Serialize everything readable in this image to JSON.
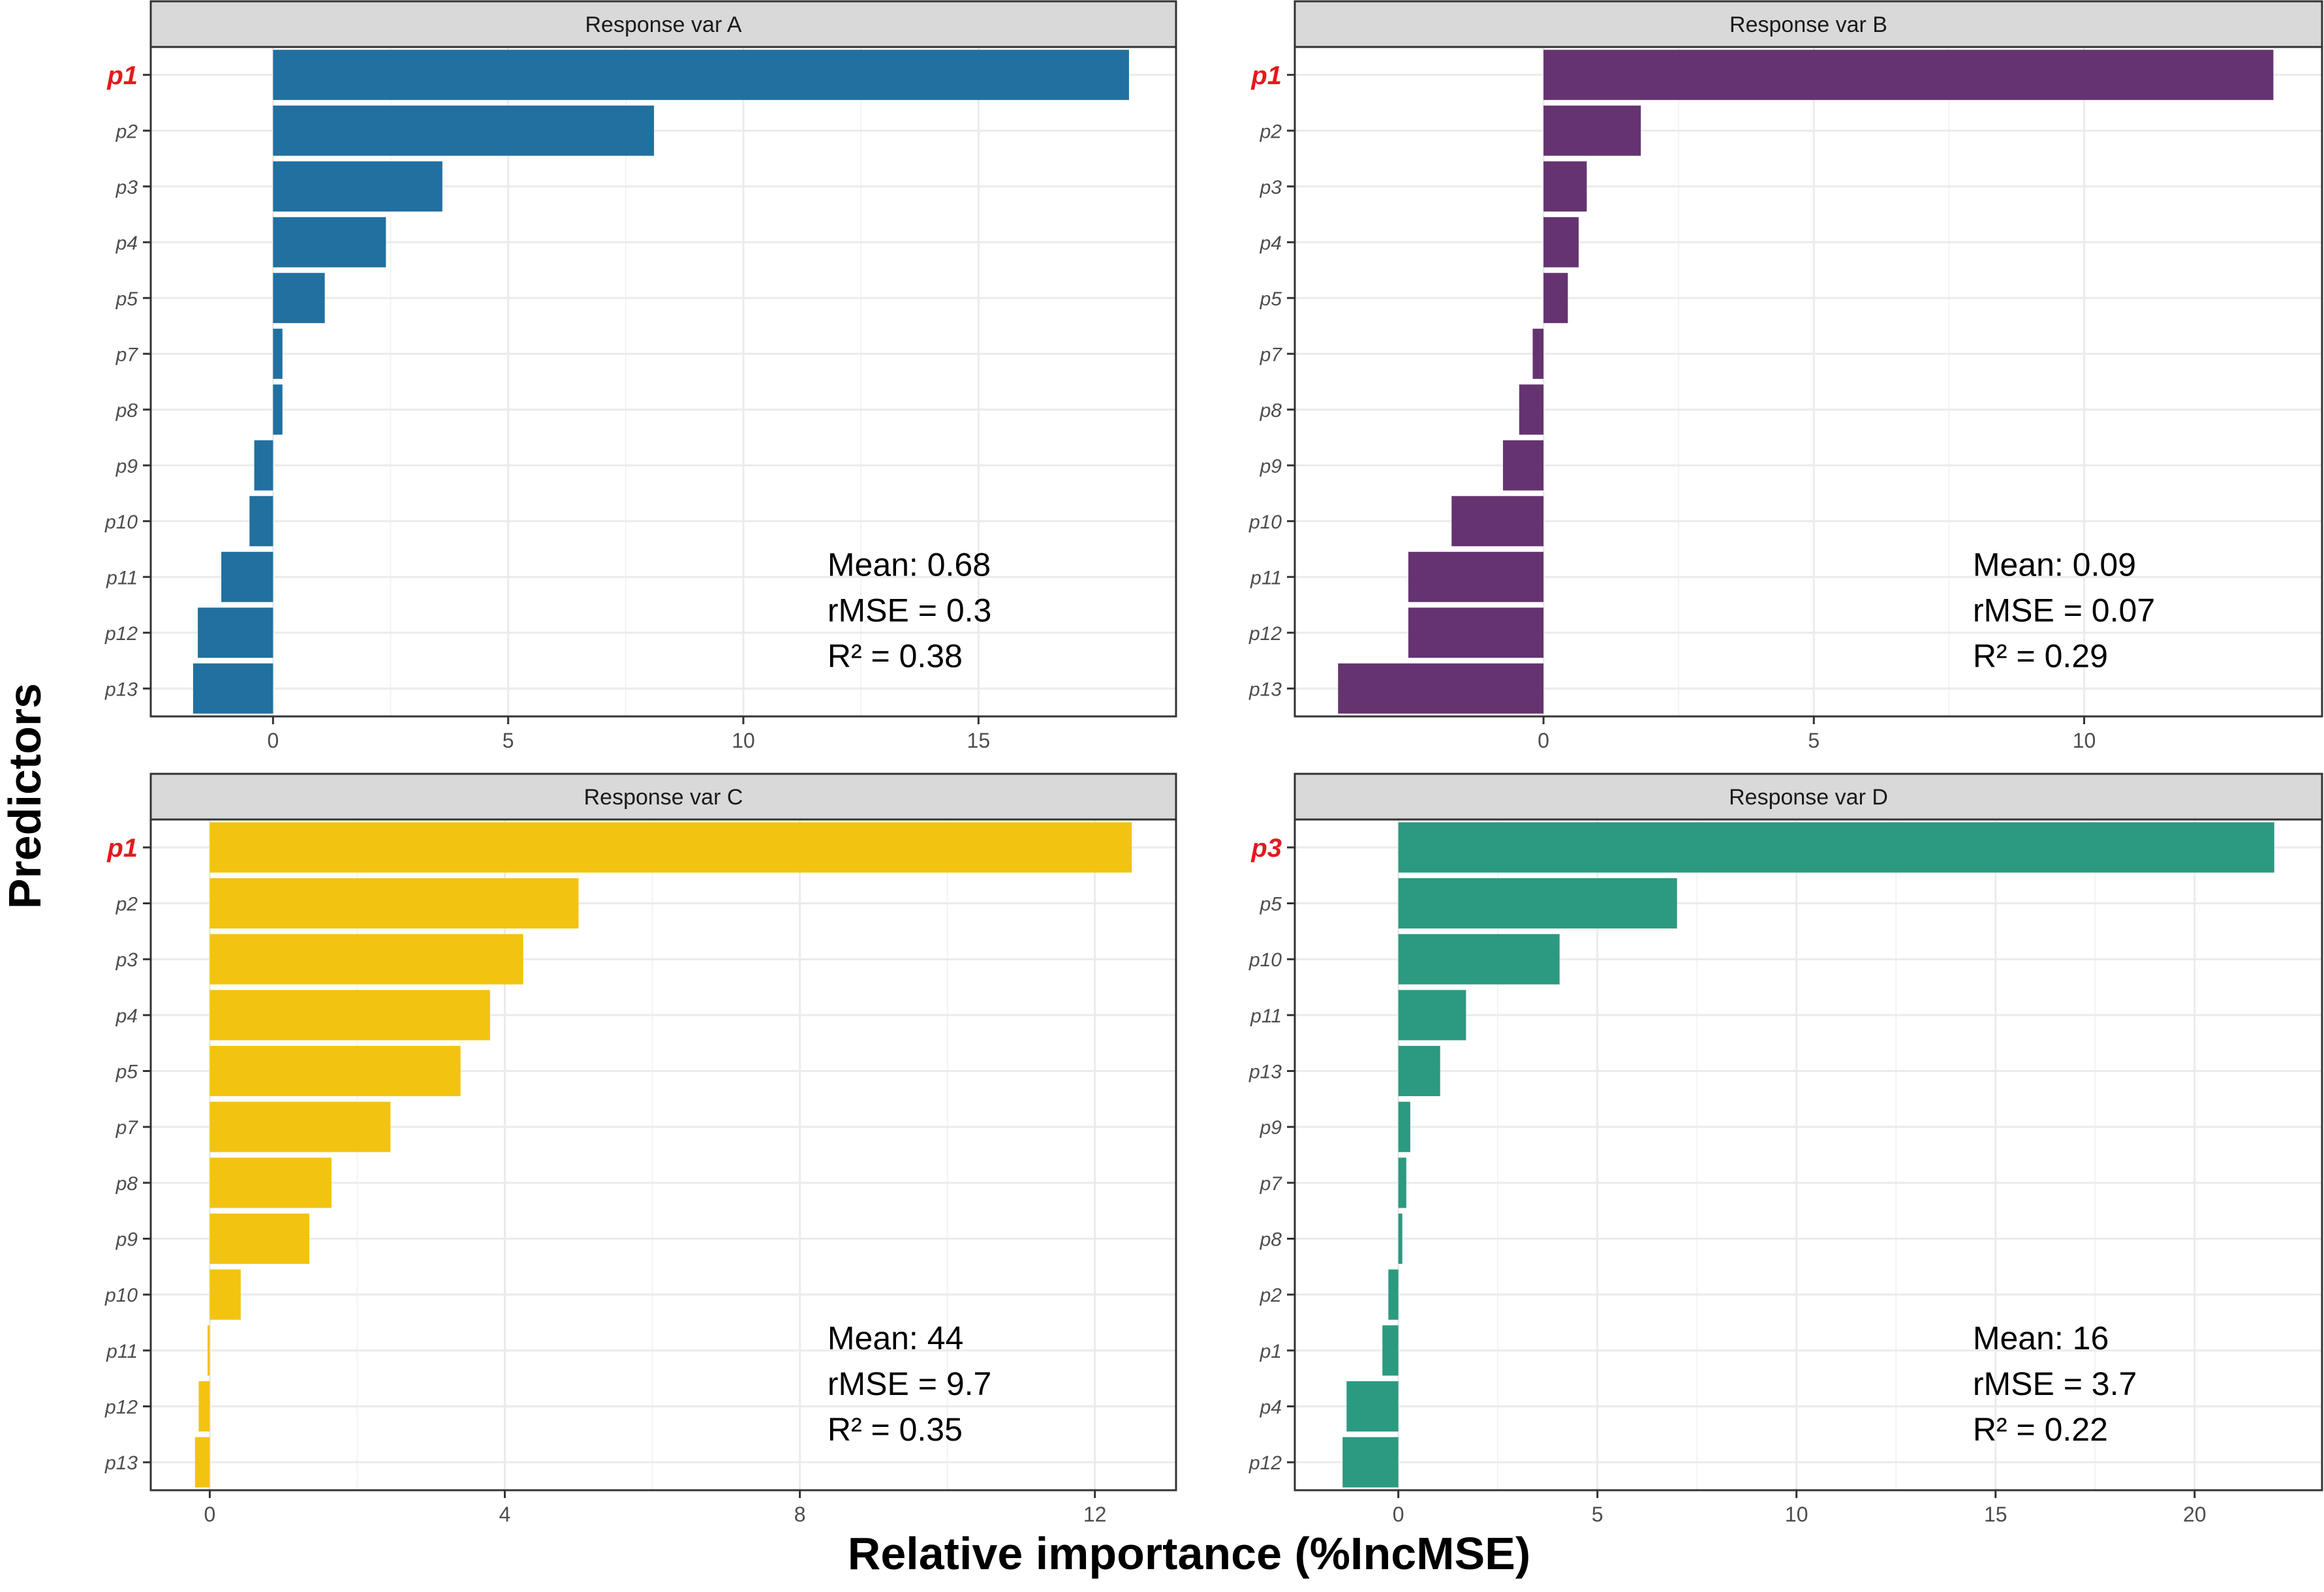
{
  "chart_data": {
    "type": "bar",
    "orientation": "horizontal",
    "xlabel": "Relative importance (%IncMSE)",
    "ylabel": "Predictors",
    "grid": true,
    "panels": [
      {
        "title": "Response var A",
        "color": "#21709f",
        "highlight": "p1",
        "categories": [
          "p1",
          "p2",
          "p3",
          "p4",
          "p5",
          "p7",
          "p8",
          "p9",
          "p10",
          "p11",
          "p12",
          "p13"
        ],
        "values": [
          18.2,
          8.1,
          3.6,
          2.4,
          1.1,
          0.2,
          0.2,
          -0.4,
          -0.5,
          -1.1,
          -1.6,
          -1.7
        ],
        "xlim": [
          -2.6,
          19.2
        ],
        "xticks": [
          0,
          5,
          10,
          15
        ],
        "tick_labels": [
          "0",
          "5",
          "10",
          "15"
        ],
        "stats": {
          "mean": "Mean: 0.68",
          "rmse": "rMSE = 0.3",
          "r2": "R² = 0.38"
        }
      },
      {
        "title": "Response var B",
        "color": "#653470",
        "highlight": "p1",
        "categories": [
          "p1",
          "p2",
          "p3",
          "p4",
          "p5",
          "p7",
          "p8",
          "p9",
          "p10",
          "p11",
          "p12",
          "p13"
        ],
        "values": [
          13.5,
          1.8,
          0.8,
          0.65,
          0.45,
          -0.2,
          -0.45,
          -0.75,
          -1.7,
          -2.5,
          -2.5,
          -3.8
        ],
        "xlim": [
          -4.6,
          14.4
        ],
        "xticks": [
          0,
          5,
          10
        ],
        "tick_labels": [
          "0",
          "5",
          "10"
        ],
        "stats": {
          "mean": "Mean: 0.09",
          "rmse": "rMSE = 0.07",
          "r2": "R² = 0.29"
        }
      },
      {
        "title": "Response var C",
        "color": "#f3c311",
        "highlight": "p1",
        "categories": [
          "p1",
          "p2",
          "p3",
          "p4",
          "p5",
          "p7",
          "p8",
          "p9",
          "p10",
          "p11",
          "p12",
          "p13"
        ],
        "values": [
          12.5,
          5.0,
          4.25,
          3.8,
          3.4,
          2.45,
          1.65,
          1.35,
          0.42,
          -0.03,
          -0.15,
          -0.2
        ],
        "xlim": [
          -0.8,
          13.1
        ],
        "xticks": [
          0,
          4,
          8,
          12
        ],
        "tick_labels": [
          "0",
          "4",
          "8",
          "12"
        ],
        "stats": {
          "mean": "Mean: 44",
          "rmse": "rMSE = 9.7",
          "r2": "R² = 0.35"
        }
      },
      {
        "title": "Response var D",
        "color": "#2b9a81",
        "highlight": "p3",
        "categories": [
          "p3",
          "p5",
          "p10",
          "p11",
          "p13",
          "p9",
          "p7",
          "p8",
          "p2",
          "p1",
          "p4",
          "p12"
        ],
        "values": [
          22.0,
          7.0,
          4.05,
          1.7,
          1.05,
          0.3,
          0.2,
          0.1,
          -0.25,
          -0.4,
          -1.3,
          -1.4
        ],
        "xlim": [
          -2.6,
          23.2
        ],
        "xticks": [
          0,
          5,
          10,
          15,
          20
        ],
        "tick_labels": [
          "0",
          "5",
          "10",
          "15",
          "20"
        ],
        "stats": {
          "mean": "Mean: 16",
          "rmse": "rMSE = 3.7",
          "r2": "R² = 0.22"
        }
      }
    ]
  }
}
